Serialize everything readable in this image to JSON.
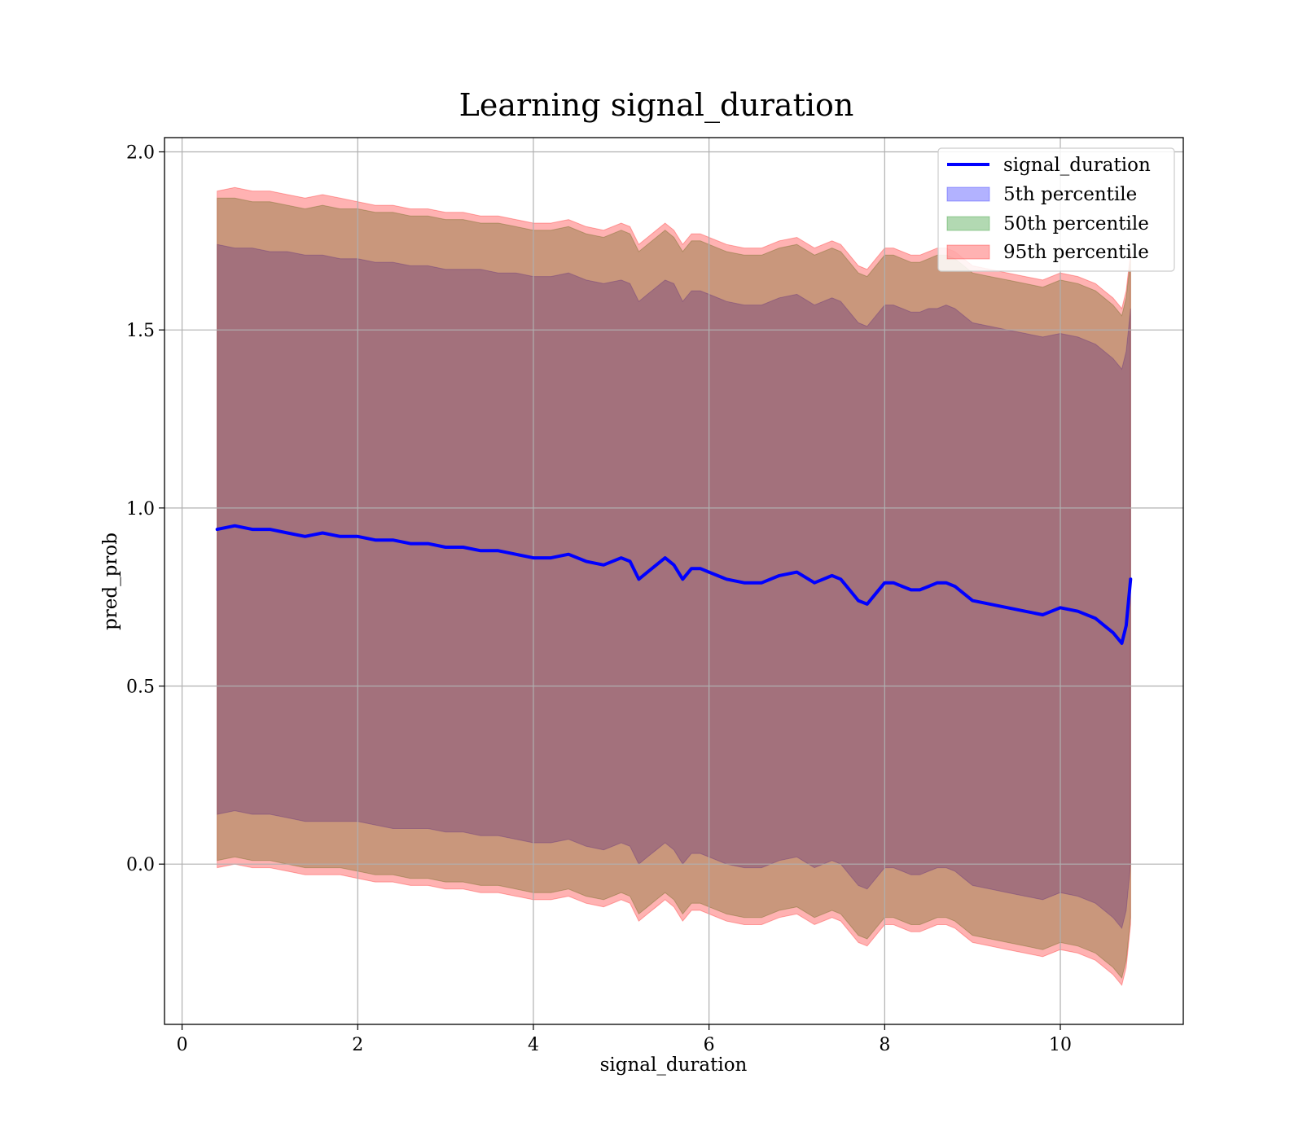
{
  "chart_data": {
    "type": "area",
    "title": "Learning signal_duration",
    "xlabel": "signal_duration",
    "ylabel": "pred_prob",
    "xlim": [
      -0.2,
      11.4
    ],
    "ylim": [
      -0.45,
      2.04
    ],
    "xticks": [
      0,
      2,
      4,
      6,
      8,
      10
    ],
    "yticks": [
      0.0,
      0.5,
      1.0,
      1.5,
      2.0
    ],
    "xtick_labels": [
      "0",
      "2",
      "4",
      "6",
      "8",
      "10"
    ],
    "ytick_labels": [
      "0.0",
      "0.5",
      "1.0",
      "1.5",
      "2.0"
    ],
    "grid": true,
    "legend_position": "top-right",
    "x": [
      0.4,
      0.6,
      0.8,
      1.0,
      1.2,
      1.4,
      1.6,
      1.8,
      2.0,
      2.2,
      2.4,
      2.6,
      2.8,
      3.0,
      3.2,
      3.4,
      3.6,
      3.8,
      4.0,
      4.2,
      4.4,
      4.6,
      4.8,
      5.0,
      5.1,
      5.2,
      5.3,
      5.4,
      5.5,
      5.6,
      5.7,
      5.8,
      5.9,
      6.0,
      6.2,
      6.4,
      6.6,
      6.8,
      7.0,
      7.2,
      7.4,
      7.5,
      7.6,
      7.7,
      7.8,
      7.9,
      8.0,
      8.1,
      8.2,
      8.3,
      8.4,
      8.5,
      8.6,
      8.7,
      8.8,
      8.9,
      9.0,
      9.2,
      9.4,
      9.6,
      9.8,
      10.0,
      10.2,
      10.4,
      10.5,
      10.6,
      10.7,
      10.75,
      10.8
    ],
    "series": [
      {
        "name": "signal_duration",
        "kind": "line",
        "color": "#0000ff",
        "values": [
          0.94,
          0.95,
          0.94,
          0.94,
          0.93,
          0.92,
          0.93,
          0.92,
          0.92,
          0.91,
          0.91,
          0.9,
          0.9,
          0.89,
          0.89,
          0.88,
          0.88,
          0.87,
          0.86,
          0.86,
          0.87,
          0.85,
          0.84,
          0.86,
          0.85,
          0.8,
          0.82,
          0.84,
          0.86,
          0.84,
          0.8,
          0.83,
          0.83,
          0.82,
          0.8,
          0.79,
          0.79,
          0.81,
          0.82,
          0.79,
          0.81,
          0.8,
          0.77,
          0.74,
          0.73,
          0.76,
          0.79,
          0.79,
          0.78,
          0.77,
          0.77,
          0.78,
          0.79,
          0.79,
          0.78,
          0.76,
          0.74,
          0.73,
          0.72,
          0.71,
          0.7,
          0.72,
          0.71,
          0.69,
          0.67,
          0.65,
          0.62,
          0.67,
          0.8
        ]
      },
      {
        "name": "5th percentile",
        "kind": "band",
        "color": "#0000ff",
        "upper": [
          1.74,
          1.73,
          1.73,
          1.72,
          1.72,
          1.71,
          1.71,
          1.7,
          1.7,
          1.69,
          1.69,
          1.68,
          1.68,
          1.67,
          1.67,
          1.67,
          1.66,
          1.66,
          1.65,
          1.65,
          1.66,
          1.64,
          1.63,
          1.64,
          1.63,
          1.58,
          1.6,
          1.62,
          1.64,
          1.63,
          1.58,
          1.61,
          1.61,
          1.6,
          1.58,
          1.57,
          1.57,
          1.59,
          1.6,
          1.57,
          1.59,
          1.58,
          1.55,
          1.52,
          1.51,
          1.54,
          1.57,
          1.57,
          1.56,
          1.55,
          1.55,
          1.56,
          1.56,
          1.57,
          1.56,
          1.54,
          1.52,
          1.51,
          1.5,
          1.49,
          1.48,
          1.49,
          1.48,
          1.46,
          1.44,
          1.42,
          1.39,
          1.44,
          1.56
        ],
        "lower": [
          0.14,
          0.15,
          0.14,
          0.14,
          0.13,
          0.12,
          0.12,
          0.12,
          0.12,
          0.11,
          0.1,
          0.1,
          0.1,
          0.09,
          0.09,
          0.08,
          0.08,
          0.07,
          0.06,
          0.06,
          0.07,
          0.05,
          0.04,
          0.06,
          0.05,
          0.0,
          0.02,
          0.04,
          0.06,
          0.04,
          0.0,
          0.03,
          0.03,
          0.02,
          0.0,
          -0.01,
          -0.01,
          0.01,
          0.02,
          -0.01,
          0.01,
          0.0,
          -0.03,
          -0.06,
          -0.07,
          -0.04,
          -0.01,
          -0.01,
          -0.02,
          -0.03,
          -0.03,
          -0.02,
          -0.01,
          -0.01,
          -0.02,
          -0.04,
          -0.06,
          -0.07,
          -0.08,
          -0.09,
          -0.1,
          -0.08,
          -0.09,
          -0.11,
          -0.13,
          -0.15,
          -0.18,
          -0.13,
          0.0
        ]
      },
      {
        "name": "50th percentile",
        "kind": "band",
        "color": "#008000",
        "upper": [
          1.87,
          1.87,
          1.86,
          1.86,
          1.85,
          1.84,
          1.85,
          1.84,
          1.84,
          1.83,
          1.83,
          1.82,
          1.82,
          1.81,
          1.81,
          1.8,
          1.8,
          1.79,
          1.78,
          1.78,
          1.79,
          1.77,
          1.76,
          1.78,
          1.77,
          1.72,
          1.74,
          1.76,
          1.78,
          1.76,
          1.72,
          1.75,
          1.75,
          1.74,
          1.72,
          1.71,
          1.71,
          1.73,
          1.74,
          1.71,
          1.73,
          1.72,
          1.69,
          1.66,
          1.65,
          1.68,
          1.71,
          1.71,
          1.7,
          1.69,
          1.69,
          1.7,
          1.71,
          1.71,
          1.7,
          1.68,
          1.66,
          1.65,
          1.64,
          1.63,
          1.62,
          1.64,
          1.63,
          1.61,
          1.59,
          1.57,
          1.54,
          1.59,
          1.7
        ],
        "lower": [
          0.01,
          0.02,
          0.01,
          0.01,
          0.0,
          -0.01,
          -0.01,
          -0.01,
          -0.02,
          -0.03,
          -0.03,
          -0.04,
          -0.04,
          -0.05,
          -0.05,
          -0.06,
          -0.06,
          -0.07,
          -0.08,
          -0.08,
          -0.07,
          -0.09,
          -0.1,
          -0.08,
          -0.09,
          -0.14,
          -0.12,
          -0.1,
          -0.08,
          -0.1,
          -0.14,
          -0.11,
          -0.11,
          -0.12,
          -0.14,
          -0.15,
          -0.15,
          -0.13,
          -0.12,
          -0.15,
          -0.13,
          -0.14,
          -0.17,
          -0.2,
          -0.21,
          -0.18,
          -0.15,
          -0.15,
          -0.16,
          -0.17,
          -0.17,
          -0.16,
          -0.15,
          -0.15,
          -0.16,
          -0.18,
          -0.2,
          -0.21,
          -0.22,
          -0.23,
          -0.24,
          -0.22,
          -0.23,
          -0.25,
          -0.27,
          -0.29,
          -0.32,
          -0.27,
          -0.15
        ]
      },
      {
        "name": "95th percentile",
        "kind": "band",
        "color": "#ff0000",
        "upper": [
          1.89,
          1.9,
          1.89,
          1.89,
          1.88,
          1.87,
          1.88,
          1.87,
          1.86,
          1.85,
          1.85,
          1.84,
          1.84,
          1.83,
          1.83,
          1.82,
          1.82,
          1.81,
          1.8,
          1.8,
          1.81,
          1.79,
          1.78,
          1.8,
          1.79,
          1.74,
          1.76,
          1.78,
          1.8,
          1.78,
          1.74,
          1.77,
          1.77,
          1.76,
          1.74,
          1.73,
          1.73,
          1.75,
          1.76,
          1.73,
          1.75,
          1.74,
          1.71,
          1.68,
          1.67,
          1.7,
          1.73,
          1.73,
          1.72,
          1.71,
          1.71,
          1.72,
          1.73,
          1.73,
          1.72,
          1.7,
          1.68,
          1.67,
          1.66,
          1.65,
          1.64,
          1.66,
          1.65,
          1.63,
          1.61,
          1.59,
          1.56,
          1.61,
          1.72
        ],
        "lower": [
          -0.01,
          0.0,
          -0.01,
          -0.01,
          -0.02,
          -0.03,
          -0.03,
          -0.03,
          -0.04,
          -0.05,
          -0.05,
          -0.06,
          -0.06,
          -0.07,
          -0.07,
          -0.08,
          -0.08,
          -0.09,
          -0.1,
          -0.1,
          -0.09,
          -0.11,
          -0.12,
          -0.1,
          -0.11,
          -0.16,
          -0.14,
          -0.12,
          -0.1,
          -0.12,
          -0.16,
          -0.13,
          -0.13,
          -0.14,
          -0.16,
          -0.17,
          -0.17,
          -0.15,
          -0.14,
          -0.17,
          -0.15,
          -0.16,
          -0.19,
          -0.22,
          -0.23,
          -0.2,
          -0.17,
          -0.17,
          -0.18,
          -0.19,
          -0.19,
          -0.18,
          -0.17,
          -0.17,
          -0.18,
          -0.2,
          -0.22,
          -0.23,
          -0.24,
          -0.25,
          -0.26,
          -0.24,
          -0.25,
          -0.27,
          -0.29,
          -0.31,
          -0.34,
          -0.29,
          -0.17
        ]
      }
    ]
  }
}
